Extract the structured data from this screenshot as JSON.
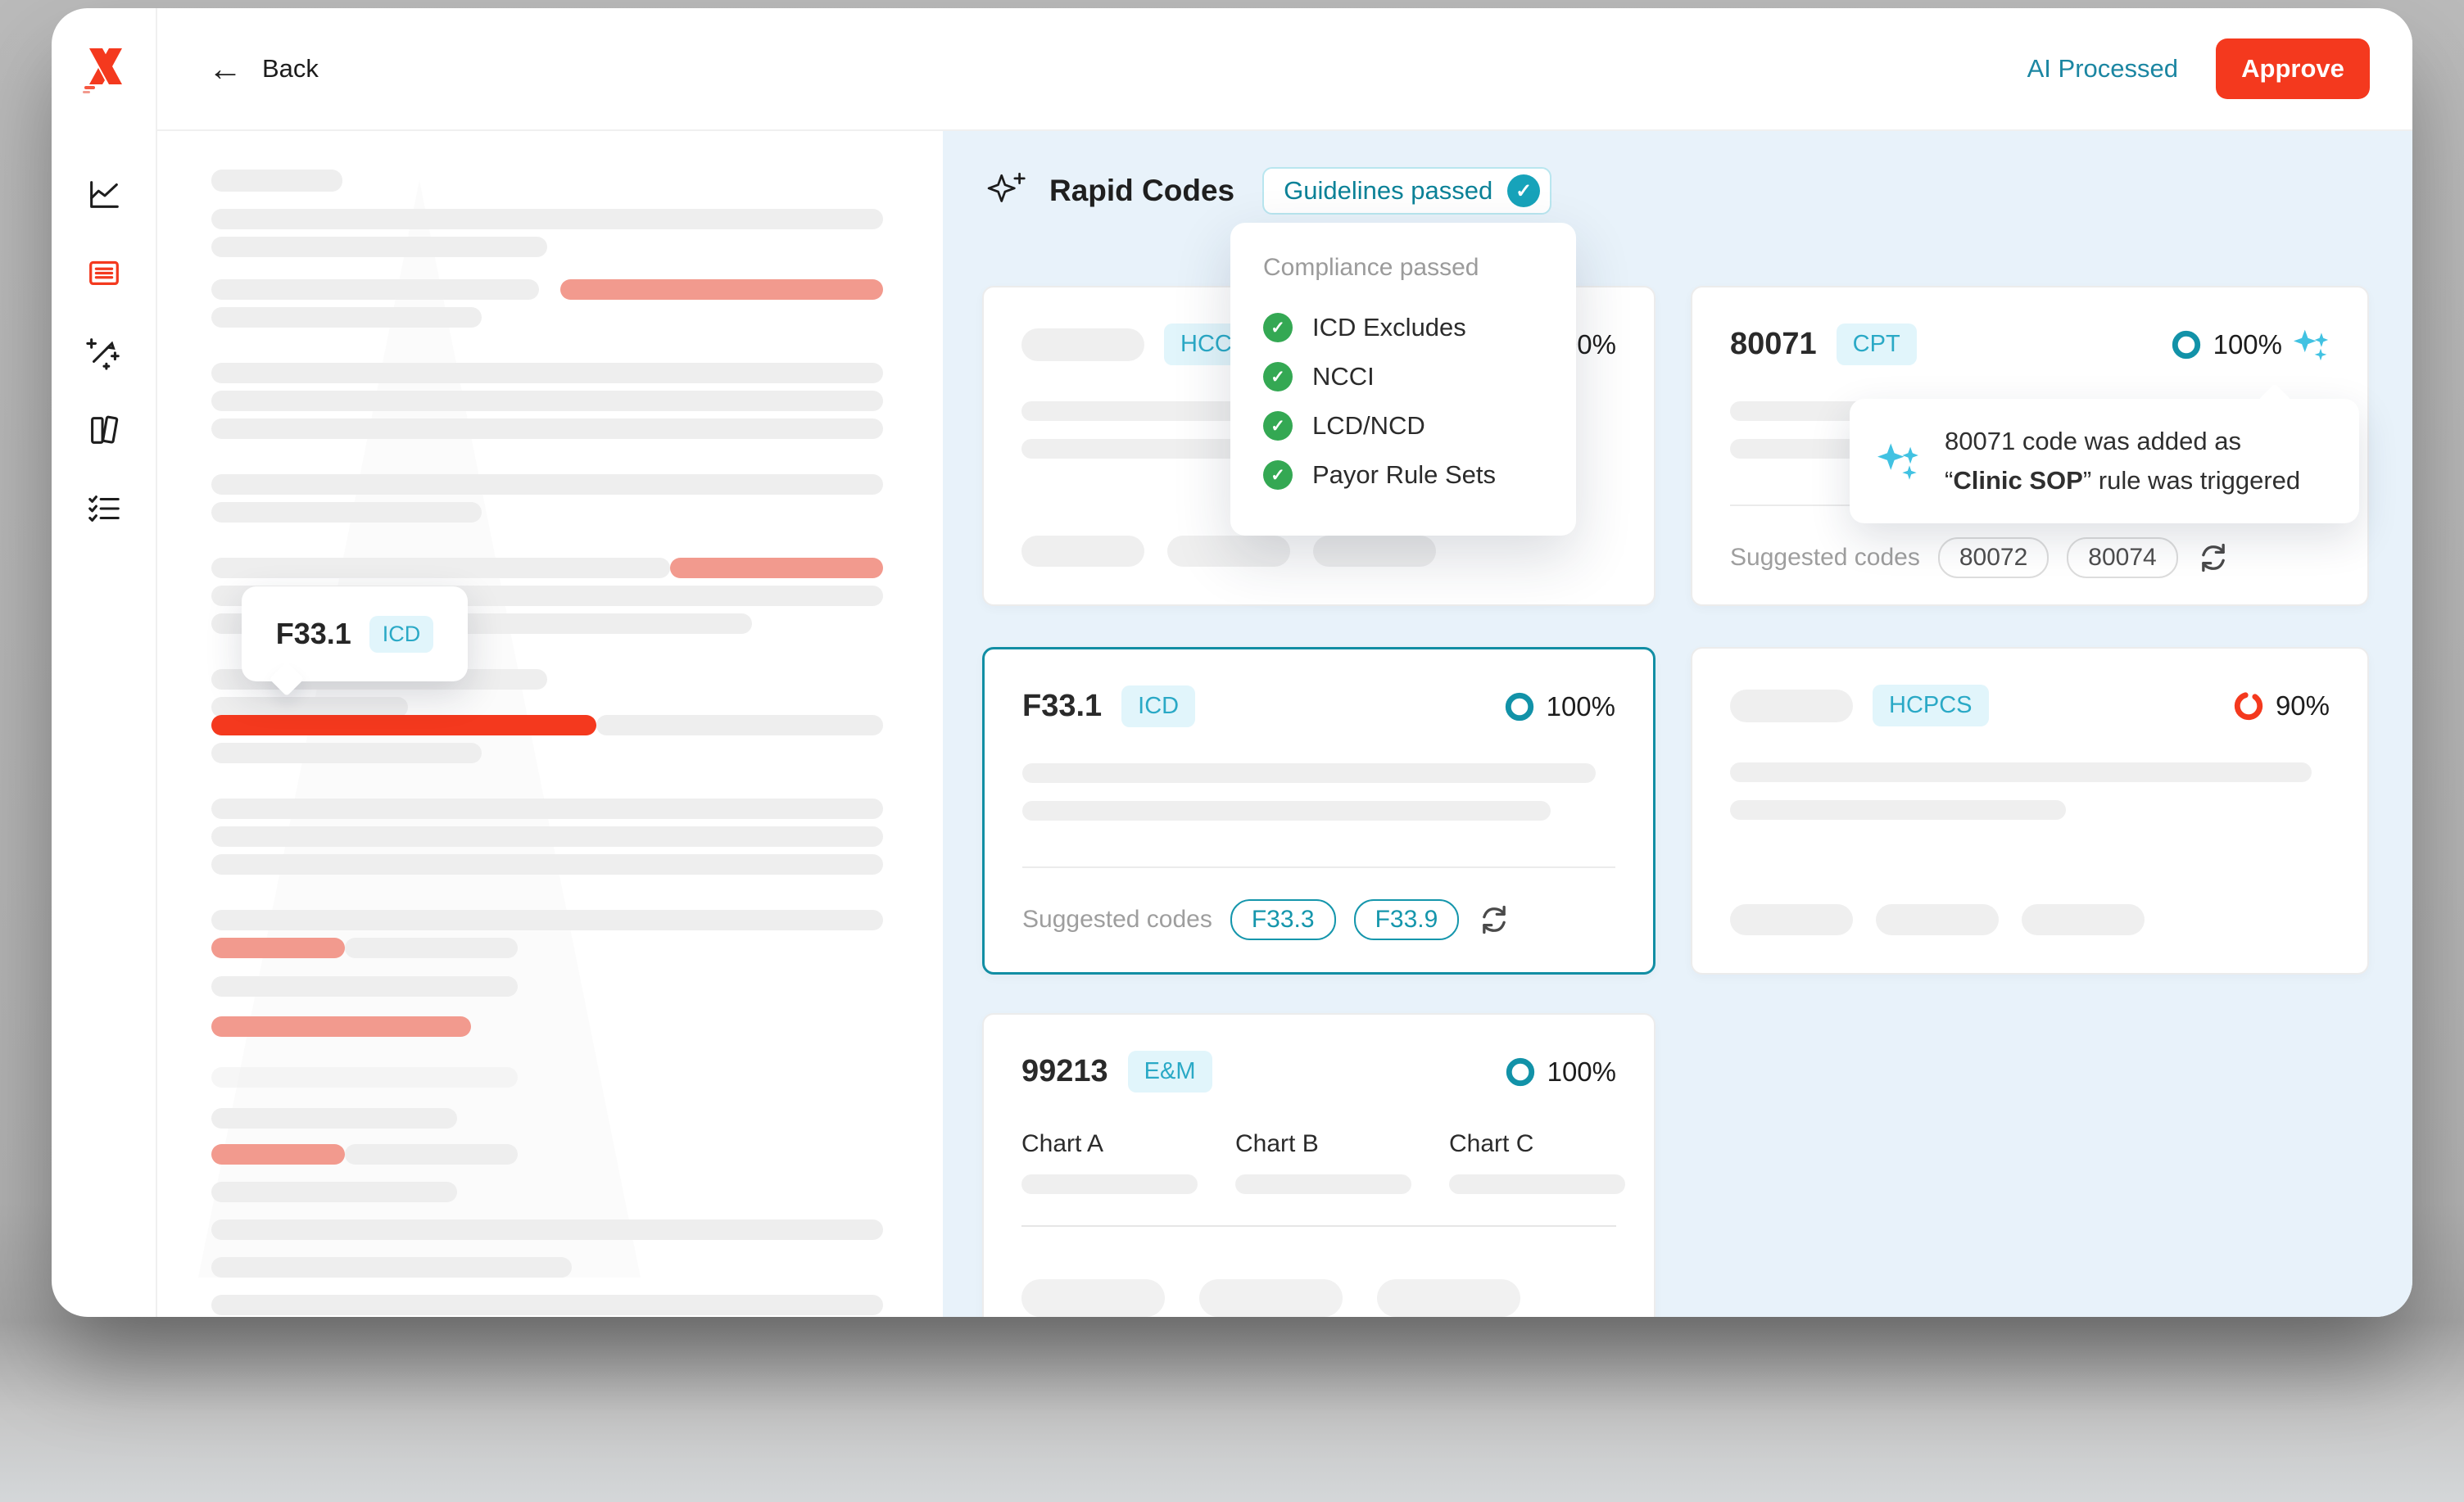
{
  "window": {
    "back_label": "Back",
    "ai_processed_label": "AI Processed",
    "approve_label": "Approve"
  },
  "sidebar": {
    "icons": [
      "line-chart",
      "document",
      "magic-wand",
      "books",
      "checklist"
    ],
    "active_icon": "document"
  },
  "doc_tooltip": {
    "code": "F33.1",
    "badge": "ICD"
  },
  "codes": {
    "title": "Rapid Codes",
    "guidelines_badge_label": "Guidelines passed",
    "suggested_label": "Suggested codes",
    "compliance": {
      "title": "Compliance passed",
      "items": [
        "ICD Excludes",
        "NCCI",
        "LCD/NCD",
        "Payor Rule Sets"
      ]
    },
    "cards": {
      "hcc": {
        "badge": "HCC",
        "confidence": "100%"
      },
      "cpt": {
        "code": "80071",
        "badge": "CPT",
        "confidence": "100%",
        "suggested": [
          "80072",
          "80074"
        ],
        "tooltip": {
          "line1": "80071 code was added as",
          "quote_open": "“",
          "bold": "Clinic SOP",
          "quote_close": "”",
          "line2_rest": " rule was triggered"
        }
      },
      "icd": {
        "code": "F33.1",
        "badge": "ICD",
        "confidence": "100%",
        "suggested": [
          "F33.3",
          "F33.9"
        ]
      },
      "hcpcs": {
        "badge": "HCPCS",
        "confidence": "90%"
      },
      "em": {
        "code": "99213",
        "badge": "E&M",
        "confidence": "100%",
        "charts": [
          "Chart A",
          "Chart B",
          "Chart C"
        ]
      }
    }
  },
  "colors": {
    "accent_teal": "#1292a8",
    "accent_red": "#f4391e",
    "salmon": "#f29a8e",
    "badge_bg": "#e1f5fb",
    "badge_text": "#2aa9c6",
    "green_check": "#34a853",
    "sparkle_cyan": "#41c2e2",
    "panel_bg": "#e8f2fa",
    "ai_link": "#1b86a2"
  }
}
